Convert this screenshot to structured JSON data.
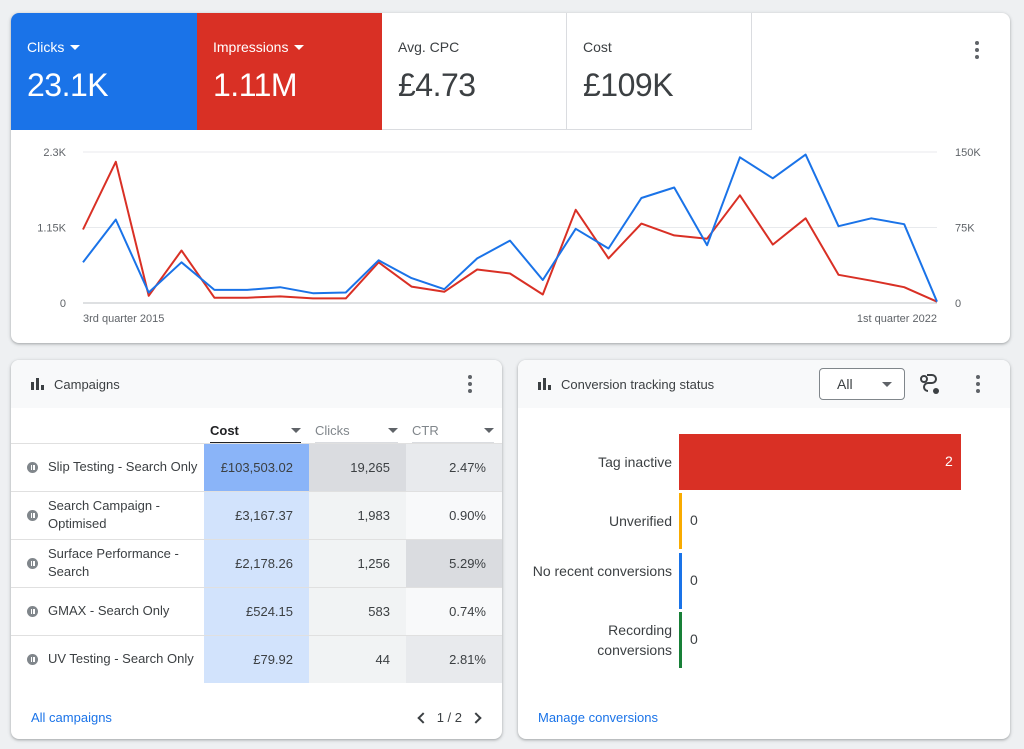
{
  "overview": {
    "metrics": [
      {
        "label": "Clicks",
        "value": "23.1K",
        "color": "#1a73e8",
        "dropdown": true
      },
      {
        "label": "Impressions",
        "value": "1.11M",
        "color": "#d93025",
        "dropdown": true
      },
      {
        "label": "Avg. CPC",
        "value": "£4.73"
      },
      {
        "label": "Cost",
        "value": "£109K"
      }
    ],
    "more_icon": "more-vert-icon"
  },
  "chart_data": {
    "type": "line",
    "x_start_label": "3rd quarter 2015",
    "x_end_label": "1st quarter 2022",
    "left_axis": {
      "ticks": [
        "2.3K",
        "1.15K",
        "0"
      ],
      "range": [
        0,
        2300
      ]
    },
    "right_axis": {
      "ticks": [
        "150K",
        "75K",
        "0"
      ],
      "range": [
        0,
        150000
      ]
    },
    "grid": true,
    "series": [
      {
        "name": "Clicks",
        "color": "#1a73e8",
        "axis": "left",
        "values": [
          620,
          1270,
          160,
          620,
          200,
          200,
          240,
          150,
          160,
          650,
          380,
          210,
          680,
          950,
          350,
          1130,
          830,
          1600,
          1760,
          880,
          2220,
          1900,
          2260,
          1170,
          1290,
          1200,
          20
        ]
      },
      {
        "name": "Impressions",
        "color": "#d93025",
        "axis": "left",
        "values": [
          1120,
          2150,
          110,
          800,
          80,
          80,
          100,
          70,
          70,
          620,
          250,
          170,
          510,
          450,
          130,
          1420,
          680,
          1210,
          1030,
          980,
          1640,
          890,
          1290,
          430,
          340,
          240,
          20
        ]
      }
    ]
  },
  "campaigns": {
    "title": "Campaigns",
    "columns": [
      {
        "label": "Cost",
        "sorted": true
      },
      {
        "label": "Clicks",
        "sorted": false
      },
      {
        "label": "CTR",
        "sorted": false
      }
    ],
    "rows": [
      {
        "name": "Slip Testing - Search Only",
        "cost": "£103,503.02",
        "clicks": "19,265",
        "ctr": "2.47%",
        "cost_shade": "#8ab4f8",
        "clicks_shade": "#dadce0",
        "ctr_shade": "#e8eaed"
      },
      {
        "name": "Search Campaign - Optimised",
        "cost": "£3,167.37",
        "clicks": "1,983",
        "ctr": "0.90%",
        "cost_shade": "#d2e3fc",
        "clicks_shade": "#f1f3f4",
        "ctr_shade": "#f8f9fa"
      },
      {
        "name": "Surface Performance - Search",
        "cost": "£2,178.26",
        "clicks": "1,256",
        "ctr": "5.29%",
        "cost_shade": "#d2e3fc",
        "clicks_shade": "#f1f3f4",
        "ctr_shade": "#dadce0"
      },
      {
        "name": "GMAX - Search Only",
        "cost": "£524.15",
        "clicks": "583",
        "ctr": "0.74%",
        "cost_shade": "#d2e3fc",
        "clicks_shade": "#f1f3f4",
        "ctr_shade": "#f8f9fa"
      },
      {
        "name": "UV Testing - Search Only",
        "cost": "£79.92",
        "clicks": "44",
        "ctr": "2.81%",
        "cost_shade": "#d2e3fc",
        "clicks_shade": "#f1f3f4",
        "ctr_shade": "#e8eaed"
      }
    ],
    "all_link": "All campaigns",
    "pagination": "1 / 2"
  },
  "conversions": {
    "title": "Conversion tracking status",
    "filter_value": "All",
    "statuses": [
      {
        "label": "Tag inactive",
        "value": 2,
        "color": "#d93025"
      },
      {
        "label": "Unverified",
        "value": 0,
        "color": "#f9ab00"
      },
      {
        "label": "No recent conversions",
        "value": 0,
        "color": "#1a73e8"
      },
      {
        "label": "Recording conversions",
        "value": 0,
        "color": "#188038"
      }
    ],
    "manage_link": "Manage conversions"
  }
}
